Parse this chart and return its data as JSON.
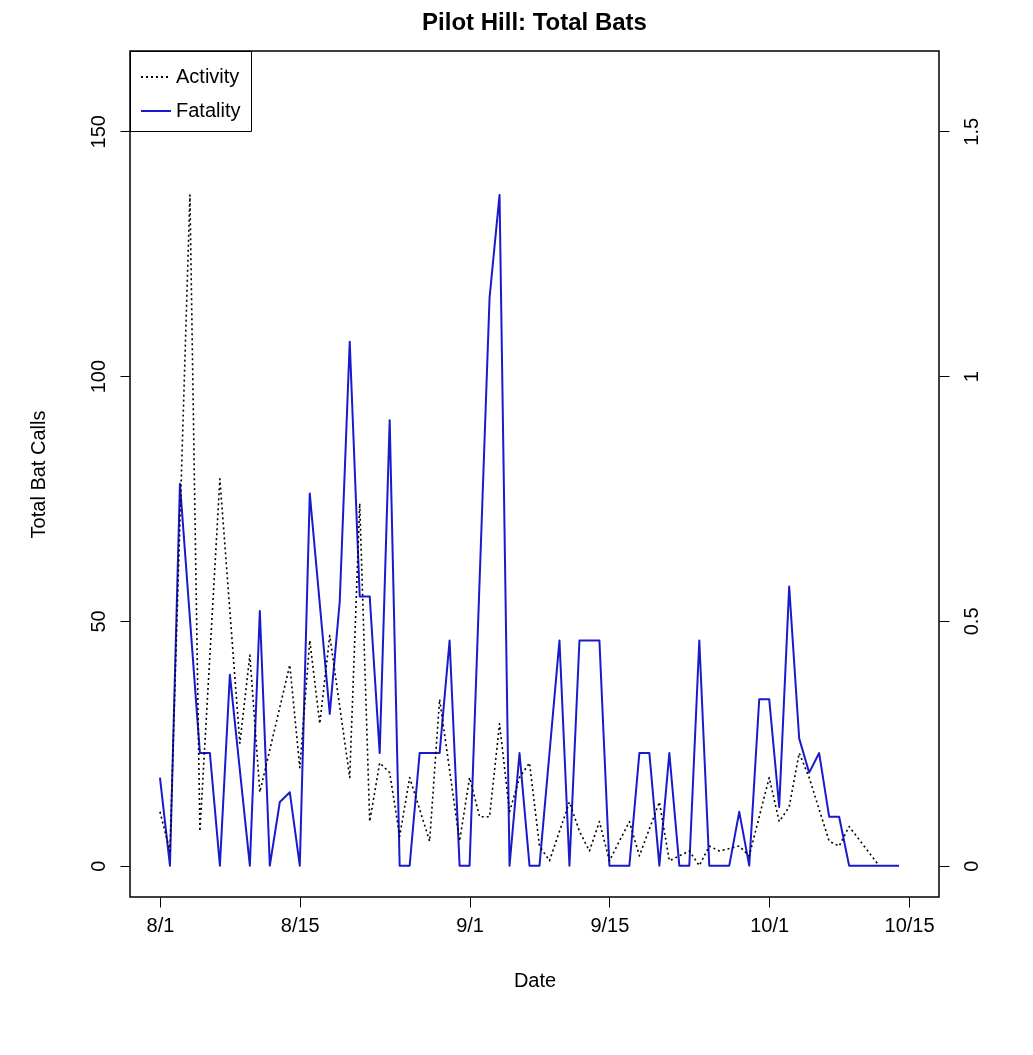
{
  "chart_data": {
    "type": "line",
    "title": "Pilot Hill: Total Bats",
    "xlabel": "Date",
    "ylabel": "Total Bat Calls",
    "xlim": [
      "--07-29",
      "--10-18"
    ],
    "xticks": [
      {
        "value": "--08-01",
        "label": "8/1"
      },
      {
        "value": "--08-15",
        "label": "8/15"
      },
      {
        "value": "--09-01",
        "label": "9/1"
      },
      {
        "value": "--09-15",
        "label": "9/15"
      },
      {
        "value": "--10-01",
        "label": "10/1"
      },
      {
        "value": "--10-15",
        "label": "10/15"
      }
    ],
    "ylim": [
      -6.4,
      166.4
    ],
    "yticks": [
      0,
      50,
      100,
      150
    ],
    "y2lim": [
      -0.064,
      1.664
    ],
    "y2ticks": [
      0,
      0.5,
      1,
      1.5
    ],
    "legend": "top left",
    "series": [
      {
        "name": "Activity",
        "color": "#000000",
        "line_style": "dotted",
        "x": [
          "--08-01",
          "--08-02",
          "--08-04",
          "--08-05",
          "--08-07",
          "--08-09",
          "--08-10",
          "--08-11",
          "--08-14",
          "--08-15",
          "--08-16",
          "--08-17",
          "--08-18",
          "--08-20",
          "--08-21",
          "--08-22",
          "--08-23",
          "--08-24",
          "--08-25",
          "--08-26",
          "--08-28",
          "--08-29",
          "--08-31",
          "--09-01",
          "--09-02",
          "--09-03",
          "--09-04",
          "--09-05",
          "--09-06",
          "--09-07",
          "--09-08",
          "--09-09",
          "--09-11",
          "--09-12",
          "--09-13",
          "--09-14",
          "--09-15",
          "--09-17",
          "--09-18",
          "--09-20",
          "--09-21",
          "--09-23",
          "--09-24",
          "--09-25",
          "--09-26",
          "--09-28",
          "--09-29",
          "--10-01",
          "--10-02",
          "--10-03",
          "--10-04",
          "--10-05",
          "--10-07",
          "--10-08",
          "--10-09",
          "--10-12"
        ],
        "values": [
          11,
          3,
          137,
          7,
          79,
          25,
          43,
          15,
          41,
          20,
          46,
          29,
          47,
          18,
          74,
          9,
          21,
          19,
          6,
          18,
          5,
          34,
          5,
          18,
          10,
          10,
          29,
          11,
          18,
          21,
          4,
          1,
          13,
          7,
          3,
          9,
          1,
          9,
          2,
          13,
          1,
          3,
          0,
          4,
          3,
          4,
          2,
          18,
          9,
          12,
          23,
          18,
          5,
          4,
          8,
          0
        ]
      },
      {
        "name": "Fatality",
        "color": "#1a1acd",
        "line_style": "solid",
        "axis": "y2",
        "x": [
          "--08-01",
          "--08-02",
          "--08-03",
          "--08-05",
          "--08-06",
          "--08-07",
          "--08-08",
          "--08-10",
          "--08-11",
          "--08-12",
          "--08-13",
          "--08-14",
          "--08-15",
          "--08-16",
          "--08-18",
          "--08-19",
          "--08-20",
          "--08-21",
          "--08-22",
          "--08-23",
          "--08-24",
          "--08-25",
          "--08-26",
          "--08-27",
          "--08-29",
          "--08-30",
          "--08-31",
          "--09-01",
          "--09-03",
          "--09-04",
          "--09-05",
          "--09-06",
          "--09-07",
          "--09-08",
          "--09-10",
          "--09-11",
          "--09-12",
          "--09-14",
          "--09-15",
          "--09-17",
          "--09-18",
          "--09-19",
          "--09-20",
          "--09-21",
          "--09-22",
          "--09-23",
          "--09-24",
          "--09-25",
          "--09-27",
          "--09-28",
          "--09-29",
          "--09-30",
          "--10-01",
          "--10-02",
          "--10-03",
          "--10-04",
          "--10-05",
          "--10-06",
          "--10-07",
          "--10-08",
          "--10-09",
          "--10-14"
        ],
        "values": [
          0.18,
          0,
          0.78,
          0.23,
          0.23,
          0,
          0.39,
          0,
          0.52,
          0,
          0.13,
          0.15,
          0,
          0.76,
          0.31,
          0.54,
          1.07,
          0.55,
          0.55,
          0.23,
          0.91,
          0,
          0,
          0.23,
          0.23,
          0.46,
          0,
          0,
          1.16,
          1.37,
          0,
          0.23,
          0,
          0,
          0.46,
          0,
          0.46,
          0.46,
          0,
          0,
          0.23,
          0.23,
          0,
          0.23,
          0,
          0,
          0.46,
          0,
          0,
          0.11,
          0,
          0.34,
          0.34,
          0.12,
          0.57,
          0.26,
          0.19,
          0.23,
          0.1,
          0.1,
          0,
          0
        ]
      }
    ]
  }
}
